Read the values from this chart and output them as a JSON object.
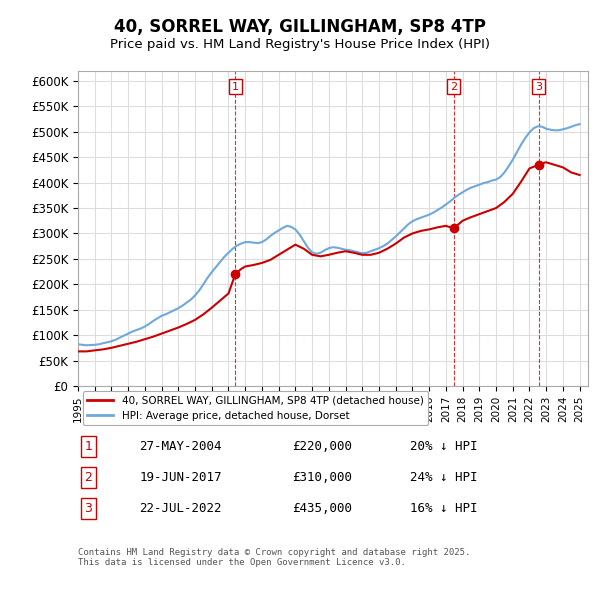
{
  "title": "40, SORREL WAY, GILLINGHAM, SP8 4TP",
  "subtitle": "Price paid vs. HM Land Registry's House Price Index (HPI)",
  "ylabel": "",
  "ylim": [
    0,
    620000
  ],
  "yticks": [
    0,
    50000,
    100000,
    150000,
    200000,
    250000,
    300000,
    350000,
    400000,
    450000,
    500000,
    550000,
    600000
  ],
  "xlim_start": 1995.0,
  "xlim_end": 2025.5,
  "hpi_color": "#6fa8dc",
  "price_color": "#cc0000",
  "vline_color": "#cc0000",
  "grid_color": "#dddddd",
  "bg_color": "#ffffff",
  "legend_entry1": "40, SORREL WAY, GILLINGHAM, SP8 4TP (detached house)",
  "legend_entry2": "HPI: Average price, detached house, Dorset",
  "sale1_date": 2004.41,
  "sale1_price": 220000,
  "sale1_label": "1",
  "sale2_date": 2017.46,
  "sale2_price": 310000,
  "sale2_label": "2",
  "sale3_date": 2022.55,
  "sale3_price": 435000,
  "sale3_label": "3",
  "table_data": [
    [
      "1",
      "27-MAY-2004",
      "£220,000",
      "20% ↓ HPI"
    ],
    [
      "2",
      "19-JUN-2017",
      "£310,000",
      "24% ↓ HPI"
    ],
    [
      "3",
      "22-JUL-2022",
      "£435,000",
      "16% ↓ HPI"
    ]
  ],
  "footnote": "Contains HM Land Registry data © Crown copyright and database right 2025.\nThis data is licensed under the Open Government Licence v3.0.",
  "hpi_data_x": [
    1995.0,
    1995.25,
    1995.5,
    1995.75,
    1996.0,
    1996.25,
    1996.5,
    1996.75,
    1997.0,
    1997.25,
    1997.5,
    1997.75,
    1998.0,
    1998.25,
    1998.5,
    1998.75,
    1999.0,
    1999.25,
    1999.5,
    1999.75,
    2000.0,
    2000.25,
    2000.5,
    2000.75,
    2001.0,
    2001.25,
    2001.5,
    2001.75,
    2002.0,
    2002.25,
    2002.5,
    2002.75,
    2003.0,
    2003.25,
    2003.5,
    2003.75,
    2004.0,
    2004.25,
    2004.5,
    2004.75,
    2005.0,
    2005.25,
    2005.5,
    2005.75,
    2006.0,
    2006.25,
    2006.5,
    2006.75,
    2007.0,
    2007.25,
    2007.5,
    2007.75,
    2008.0,
    2008.25,
    2008.5,
    2008.75,
    2009.0,
    2009.25,
    2009.5,
    2009.75,
    2010.0,
    2010.25,
    2010.5,
    2010.75,
    2011.0,
    2011.25,
    2011.5,
    2011.75,
    2012.0,
    2012.25,
    2012.5,
    2012.75,
    2013.0,
    2013.25,
    2013.5,
    2013.75,
    2014.0,
    2014.25,
    2014.5,
    2014.75,
    2015.0,
    2015.25,
    2015.5,
    2015.75,
    2016.0,
    2016.25,
    2016.5,
    2016.75,
    2017.0,
    2017.25,
    2017.5,
    2017.75,
    2018.0,
    2018.25,
    2018.5,
    2018.75,
    2019.0,
    2019.25,
    2019.5,
    2019.75,
    2020.0,
    2020.25,
    2020.5,
    2020.75,
    2021.0,
    2021.25,
    2021.5,
    2021.75,
    2022.0,
    2022.25,
    2022.5,
    2022.75,
    2023.0,
    2023.25,
    2023.5,
    2023.75,
    2024.0,
    2024.25,
    2024.5,
    2024.75,
    2025.0
  ],
  "hpi_data_y": [
    82000,
    81000,
    80000,
    80500,
    81000,
    82000,
    84000,
    86000,
    88000,
    91000,
    95000,
    99000,
    103000,
    107000,
    110000,
    113000,
    117000,
    122000,
    128000,
    133000,
    138000,
    141000,
    145000,
    149000,
    153000,
    158000,
    164000,
    170000,
    178000,
    188000,
    200000,
    213000,
    224000,
    234000,
    244000,
    254000,
    262000,
    270000,
    276000,
    280000,
    283000,
    283000,
    282000,
    281000,
    283000,
    288000,
    295000,
    301000,
    306000,
    311000,
    315000,
    313000,
    308000,
    298000,
    285000,
    272000,
    263000,
    260000,
    262000,
    267000,
    271000,
    273000,
    272000,
    270000,
    268000,
    267000,
    265000,
    263000,
    261000,
    262000,
    265000,
    268000,
    271000,
    275000,
    280000,
    287000,
    294000,
    302000,
    310000,
    318000,
    324000,
    328000,
    331000,
    334000,
    337000,
    341000,
    346000,
    351000,
    357000,
    363000,
    370000,
    376000,
    381000,
    386000,
    390000,
    393000,
    396000,
    399000,
    401000,
    404000,
    406000,
    411000,
    420000,
    432000,
    445000,
    460000,
    475000,
    488000,
    499000,
    507000,
    511000,
    510000,
    506000,
    504000,
    503000,
    503000,
    505000,
    507000,
    510000,
    513000,
    515000
  ],
  "price_data_x": [
    1995.0,
    1995.5,
    1996.0,
    1996.5,
    1997.0,
    1997.5,
    1998.0,
    1998.5,
    1999.0,
    1999.5,
    2000.0,
    2000.5,
    2001.0,
    2001.5,
    2002.0,
    2002.5,
    2003.0,
    2003.5,
    2004.0,
    2004.41,
    2004.75,
    2005.0,
    2005.5,
    2006.0,
    2006.5,
    2007.0,
    2007.5,
    2008.0,
    2008.5,
    2009.0,
    2009.5,
    2010.0,
    2010.5,
    2011.0,
    2011.5,
    2012.0,
    2012.5,
    2013.0,
    2013.5,
    2014.0,
    2014.5,
    2015.0,
    2015.5,
    2016.0,
    2016.5,
    2017.0,
    2017.46,
    2017.75,
    2018.0,
    2018.5,
    2019.0,
    2019.5,
    2020.0,
    2020.5,
    2021.0,
    2021.5,
    2022.0,
    2022.55,
    2022.75,
    2023.0,
    2023.5,
    2024.0,
    2024.5,
    2025.0
  ],
  "price_data_y": [
    68000,
    68000,
    70000,
    72000,
    75000,
    79000,
    83000,
    87000,
    92000,
    97000,
    103000,
    109000,
    115000,
    122000,
    130000,
    141000,
    154000,
    168000,
    182000,
    220000,
    230000,
    235000,
    238000,
    242000,
    248000,
    258000,
    268000,
    278000,
    270000,
    258000,
    255000,
    258000,
    262000,
    265000,
    262000,
    258000,
    258000,
    262000,
    270000,
    280000,
    292000,
    300000,
    305000,
    308000,
    312000,
    315000,
    310000,
    318000,
    325000,
    332000,
    338000,
    344000,
    350000,
    362000,
    378000,
    402000,
    428000,
    435000,
    438000,
    440000,
    435000,
    430000,
    420000,
    415000
  ]
}
